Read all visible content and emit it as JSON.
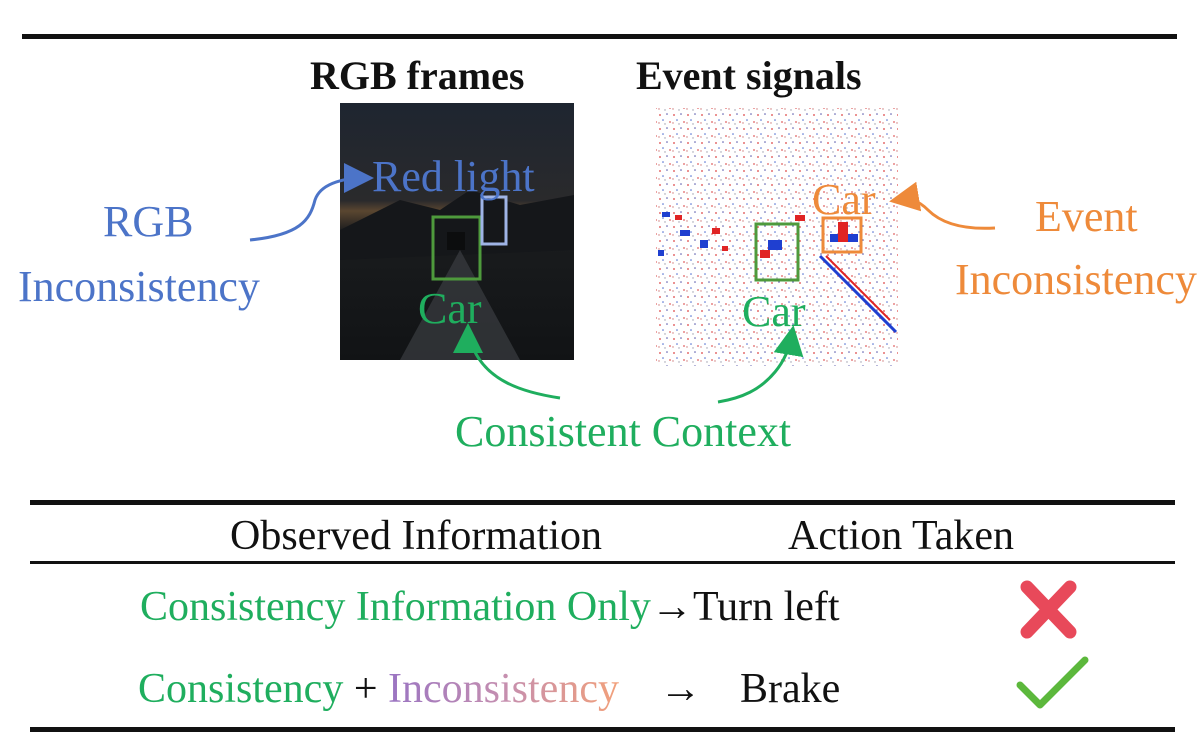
{
  "headers": {
    "rgb": "RGB frames",
    "event": "Event signals"
  },
  "labels": {
    "rgb_inconsistency_line1": "RGB",
    "rgb_inconsistency_line2": "Inconsistency",
    "red_light": "Red light",
    "car_rgb": "Car",
    "car_event_top": "Car",
    "car_event_bottom": "Car",
    "event_inconsistency_line1": "Event",
    "event_inconsistency_line2": "Inconsistency",
    "consistent_context": "Consistent Context"
  },
  "table": {
    "col_observed": "Observed Information",
    "col_action": "Action Taken",
    "row1_observed": "Consistency Information Only",
    "row1_arrow": "→",
    "row1_action": "Turn left",
    "row2_consistency": "Consistency",
    "row2_plus": "+",
    "row2_inconsistency": "Inconsistency",
    "row2_arrow": "→",
    "row2_action": "Brake"
  },
  "colors": {
    "rgb_blue": "#4c74c8",
    "consistent_green": "#1fae5e",
    "event_orange": "#ee8a3a",
    "wrong_red": "#e8495a",
    "correct_green": "#5cb83c"
  },
  "icons": {
    "wrong": "cross-icon",
    "correct": "check-icon"
  }
}
